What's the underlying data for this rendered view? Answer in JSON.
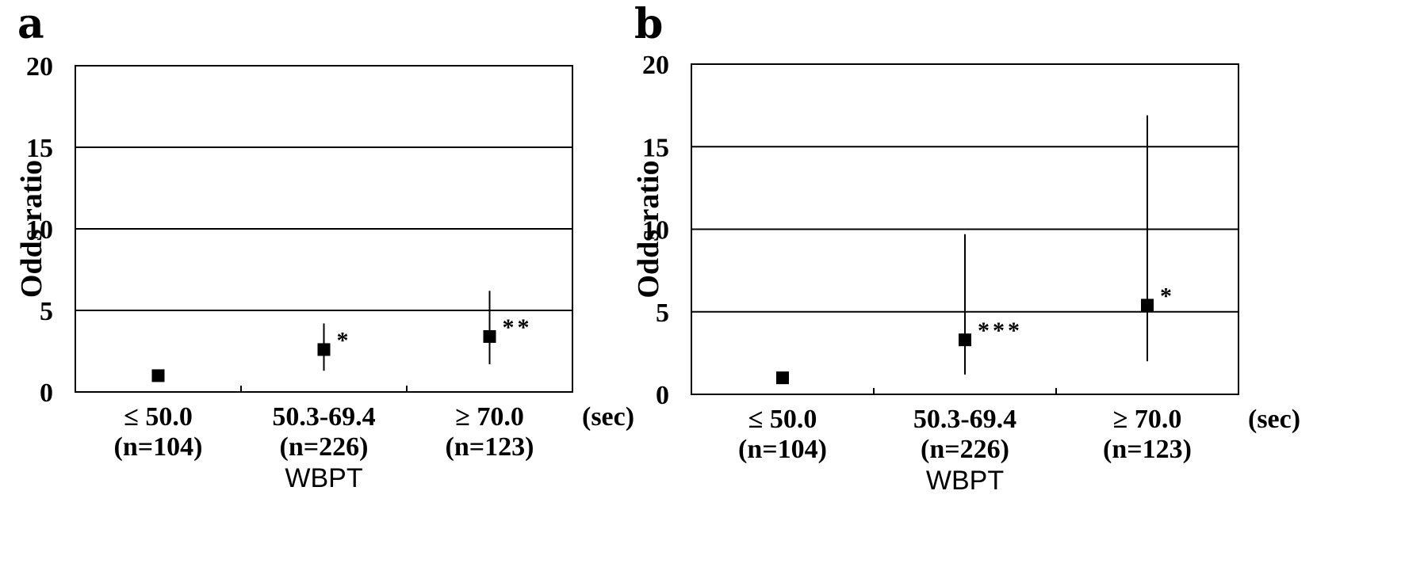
{
  "chart_data": [
    {
      "type": "scatter",
      "panel_label": "a",
      "ylabel": "Odds ratio",
      "xlabel": "WBPT",
      "x_unit": "(sec)",
      "ylim": [
        0,
        20
      ],
      "yticks": [
        "0",
        "5",
        "10",
        "15",
        "20"
      ],
      "grid": "horizontal lines at 5, 10, 15",
      "categories": [
        {
          "range": "≤ 50.0",
          "n": "(n=104)"
        },
        {
          "range": "50.3-69.4",
          "n": "(n=226)"
        },
        {
          "range": "≥ 70.0",
          "n": "(n=123)"
        }
      ],
      "points": [
        {
          "or": 1.0,
          "lo": null,
          "hi": null,
          "sig": ""
        },
        {
          "or": 2.6,
          "lo": 1.3,
          "hi": 4.2,
          "sig": "*"
        },
        {
          "or": 3.4,
          "lo": 1.7,
          "hi": 6.2,
          "sig": "**"
        }
      ]
    },
    {
      "type": "scatter",
      "panel_label": "b",
      "ylabel": "Odds ratio",
      "xlabel": "WBPT",
      "x_unit": "(sec)",
      "ylim": [
        0,
        20
      ],
      "yticks": [
        "0",
        "5",
        "10",
        "15",
        "20"
      ],
      "grid": "horizontal lines at 5, 10, 15",
      "categories": [
        {
          "range": "≤ 50.0",
          "n": "(n=104)"
        },
        {
          "range": "50.3-69.4",
          "n": "(n=226)"
        },
        {
          "range": "≥ 70.0",
          "n": "(n=123)"
        }
      ],
      "points": [
        {
          "or": 1.0,
          "lo": null,
          "hi": null,
          "sig": ""
        },
        {
          "or": 3.3,
          "lo": 1.2,
          "hi": 9.7,
          "sig": "***"
        },
        {
          "or": 5.4,
          "lo": 2.0,
          "hi": 16.9,
          "sig": "*"
        }
      ]
    }
  ]
}
